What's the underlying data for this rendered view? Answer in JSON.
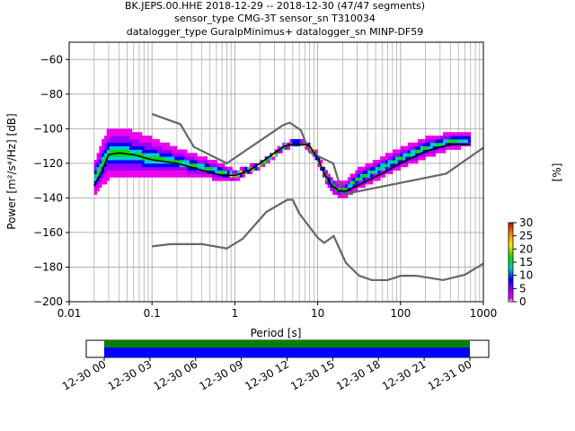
{
  "chart_data": {
    "type": "heatmap",
    "title_lines": [
      "BK.JEPS.00.HHE   2018-12-29 -- 2018-12-30  (47/47 segments)",
      "sensor_type CMG-3T sensor_sn T310034",
      "datalogger_type GuralpMinimus+ datalogger_sn MINP-DF59"
    ],
    "xlabel": "Period [s]",
    "ylabel": "Power [m²/s⁴/Hz] [dB]",
    "xscale": "log",
    "xlim": [
      0.01,
      1000
    ],
    "ylim": [
      -200,
      -50
    ],
    "xticks": [
      {
        "value": 0.01,
        "label": "0.01"
      },
      {
        "value": 0.1,
        "label": "0.1"
      },
      {
        "value": 1,
        "label": "1"
      },
      {
        "value": 10,
        "label": "10"
      },
      {
        "value": 100,
        "label": "100"
      },
      {
        "value": 1000,
        "label": "1000"
      }
    ],
    "yticks": [
      {
        "value": -60,
        "label": "−60"
      },
      {
        "value": -80,
        "label": "−80"
      },
      {
        "value": -100,
        "label": "−100"
      },
      {
        "value": -120,
        "label": "−120"
      },
      {
        "value": -140,
        "label": "−140"
      },
      {
        "value": -160,
        "label": "−160"
      },
      {
        "value": -180,
        "label": "−180"
      },
      {
        "value": -200,
        "label": "−200"
      }
    ],
    "grid": true,
    "density_band": {
      "periods": [
        0.02,
        0.03,
        0.05,
        0.1,
        0.2,
        0.4,
        0.7,
        1,
        2,
        3,
        4,
        5,
        6,
        8,
        10,
        13,
        17,
        22,
        30,
        50,
        100,
        200,
        400,
        700
      ],
      "center": [
        -130,
        -115,
        -115,
        -118,
        -120,
        -123,
        -126,
        -128,
        -122,
        -116,
        -111,
        -109,
        -109,
        -111,
        -118,
        -130,
        -136,
        -136,
        -130,
        -125,
        -118,
        -112,
        -108,
        -107
      ],
      "half_width": [
        10,
        15,
        14,
        12,
        8,
        6,
        5,
        3,
        2,
        2,
        2,
        2,
        2,
        2,
        3,
        4,
        4,
        5,
        6,
        6,
        6,
        6,
        5,
        4
      ]
    },
    "mean_curve": {
      "x": [
        0.02,
        0.025,
        0.03,
        0.04,
        0.06,
        0.1,
        0.2,
        0.4,
        0.7,
        1,
        1.5,
        2,
        3,
        4,
        5,
        6,
        7,
        8,
        10,
        12,
        15,
        18,
        22,
        30,
        40,
        60,
        100,
        200,
        400,
        700
      ],
      "y": [
        -133,
        -124,
        -115,
        -114,
        -115,
        -118,
        -120,
        -124,
        -127,
        -127,
        -124,
        -120,
        -114,
        -110,
        -109,
        -109,
        -109,
        -110,
        -117,
        -126,
        -133,
        -136,
        -136,
        -133,
        -130,
        -126,
        -120,
        -113,
        -109,
        -109
      ]
    },
    "model_curves": [
      {
        "x": [
          0.1,
          0.22,
          0.32,
          0.8,
          3.8,
          4.6,
          6.3,
          7.9,
          15.4,
          20,
          354.8,
          1000
        ],
        "y": [
          -91.5,
          -97.4,
          -110.5,
          -120,
          -98,
          -96.5,
          -101,
          -113.5,
          -120,
          -138,
          -126,
          -111
        ]
      },
      {
        "x": [
          0.1,
          0.17,
          0.4,
          0.8,
          1.24,
          2.4,
          4.3,
          5,
          6,
          10,
          12,
          15.6,
          21.9,
          31.6,
          45,
          70,
          101,
          154,
          328,
          600,
          1000
        ],
        "y": [
          -168,
          -166.7,
          -166.7,
          -169.2,
          -163.7,
          -148.1,
          -141.1,
          -141.1,
          -149,
          -163,
          -166,
          -162,
          -177.5,
          -185,
          -187.5,
          -187.5,
          -185,
          -185,
          -187.5,
          -184.4,
          -178
        ]
      }
    ],
    "colorbar": {
      "label": "[%]",
      "min": 0,
      "max": 30,
      "ticks": [
        0,
        5,
        10,
        15,
        20,
        25,
        30
      ]
    },
    "timeline": {
      "tick_labels": [
        "12-30 00",
        "12-30 03",
        "12-30 06",
        "12-30 09",
        "12-30 12",
        "12-30 15",
        "12-30 18",
        "12-30 21",
        "12-31 00"
      ]
    }
  }
}
